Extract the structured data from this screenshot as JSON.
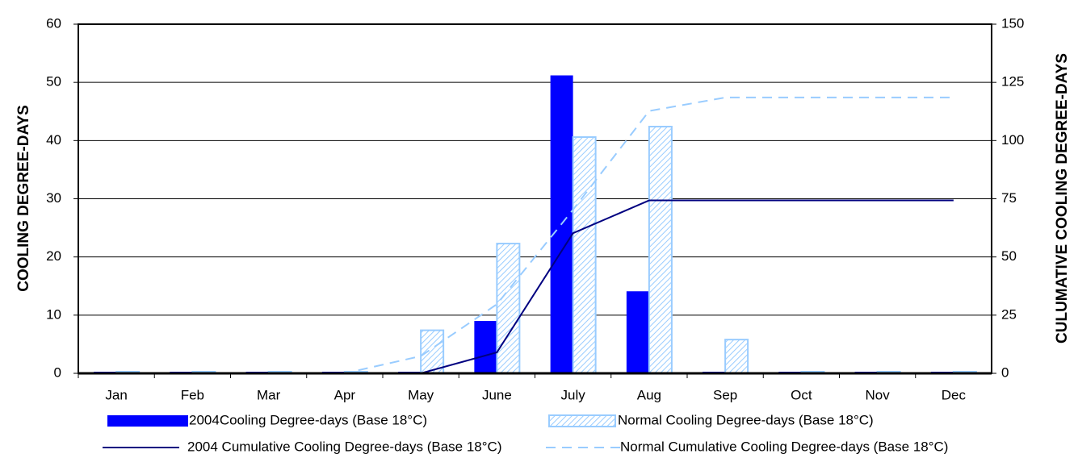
{
  "chart_data": {
    "type": "bar",
    "categories": [
      "Jan",
      "Feb",
      "Mar",
      "Apr",
      "May",
      "June",
      "July",
      "Aug",
      "Sep",
      "Oct",
      "Nov",
      "Dec"
    ],
    "y_label": "COOLING DEGREE-DAYS",
    "y2_label": "CULUMATIVE COOLING DEGREE-DAYS",
    "ylim": [
      0,
      60
    ],
    "yticks": [
      0,
      10,
      20,
      30,
      40,
      50,
      60
    ],
    "y2lim": [
      0,
      150
    ],
    "y2ticks": [
      0,
      25,
      50,
      75,
      100,
      125,
      150
    ],
    "grid": true,
    "series": [
      {
        "name": "2004Cooling Degree-days (Base 18°C)",
        "type": "bar",
        "color": "#0000ff",
        "values": [
          0,
          0,
          0,
          0,
          0,
          9,
          51.2,
          14.1,
          0,
          0,
          0,
          0
        ]
      },
      {
        "name": "Normal Cooling Degree-days (Base 18°C)",
        "type": "bar",
        "color": "#99ccff",
        "hatch": true,
        "values": [
          0,
          0,
          0,
          0,
          7.4,
          22.3,
          40.6,
          42.4,
          5.8,
          0,
          0,
          0
        ]
      },
      {
        "name": "2004 Cumulative Cooling Degree-days (Base 18°C)",
        "type": "line",
        "axis": "y2",
        "color": "#000080",
        "values": [
          0,
          0,
          0,
          0,
          0,
          9,
          60.2,
          74.3,
          74.3,
          74.3,
          74.3,
          74.3
        ]
      },
      {
        "name": "Normal Cumulative Cooling Degree-days (Base 18°C)",
        "type": "line",
        "axis": "y2",
        "color": "#99ccff",
        "dashed": true,
        "values": [
          0,
          0,
          0,
          0,
          7.4,
          29.7,
          70.3,
          112.7,
          118.5,
          118.5,
          118.5,
          118.5
        ]
      }
    ]
  }
}
